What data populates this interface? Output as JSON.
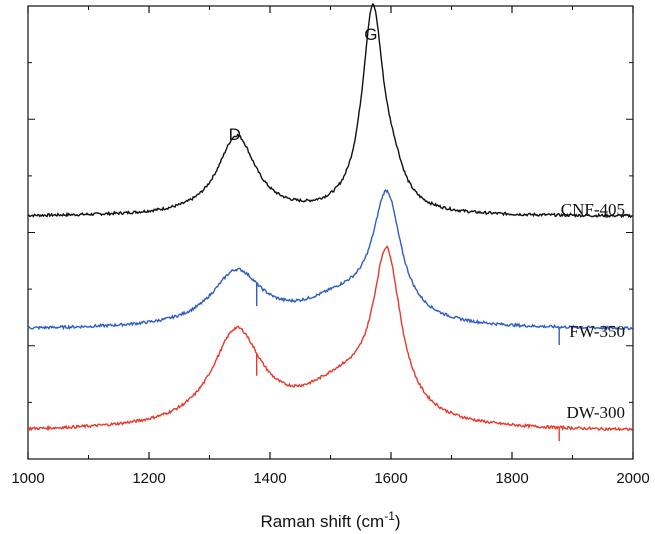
{
  "chart_data": {
    "type": "line",
    "xlabel": "Raman shift (cm",
    "xlabel_sup": "-1",
    "xlabel_end": ")",
    "ylabel": "",
    "xlim": [
      1000,
      2000
    ],
    "x_ticks": [
      1000,
      1200,
      1400,
      1600,
      1800,
      2000
    ],
    "x_tick_labels": [
      "1000",
      "1200",
      "1400",
      "1600",
      "1800",
      "2000"
    ],
    "ylim": [
      0,
      1
    ],
    "grid": false,
    "legend": "none",
    "annotations": [
      {
        "text": "D",
        "x": 1345
      },
      {
        "text": "G",
        "x": 1570
      }
    ],
    "series": [
      {
        "name": "CNF-405",
        "color": "#111111",
        "baseline": 0.535,
        "peaks": [
          {
            "center": 1345,
            "height": 0.175,
            "width": 38
          },
          {
            "center": 1570,
            "height": 0.45,
            "width": 22
          },
          {
            "center": 1605,
            "height": 0.05,
            "width": 20
          }
        ],
        "spikes": []
      },
      {
        "name": "FW-350",
        "color": "#2e5fbf",
        "baseline": 0.285,
        "peaks": [
          {
            "center": 1345,
            "height": 0.12,
            "width": 50
          },
          {
            "center": 1520,
            "height": 0.06,
            "width": 80
          },
          {
            "center": 1593,
            "height": 0.27,
            "width": 28
          }
        ],
        "spikes": [
          {
            "x": 1378,
            "dy": -0.05
          },
          {
            "x": 1878,
            "dy": -0.04
          }
        ]
      },
      {
        "name": "DW-300",
        "color": "#e8392b",
        "baseline": 0.06,
        "peaks": [
          {
            "center": 1345,
            "height": 0.21,
            "width": 50
          },
          {
            "center": 1520,
            "height": 0.09,
            "width": 80
          },
          {
            "center": 1593,
            "height": 0.35,
            "width": 28
          }
        ],
        "spikes": [
          {
            "x": 1378,
            "dy": -0.05
          },
          {
            "x": 1878,
            "dy": -0.03
          }
        ]
      }
    ]
  }
}
